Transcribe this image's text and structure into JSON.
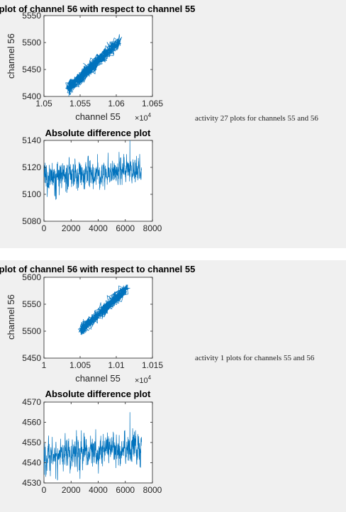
{
  "panels": [
    {
      "caption": "activity 27 plots for channels 55 and 56",
      "scatter": {
        "title": "plot of channel 56 with respect to channel 55",
        "xlabel": "channel 55",
        "ylabel": "channel 56",
        "x_exponent": "×10",
        "x_exponent_power": "4",
        "xlim": [
          1.05,
          1.065
        ],
        "ylim": [
          5400,
          5550
        ],
        "xticks": [
          "1.05",
          "1.055",
          "1.06",
          "1.065"
        ],
        "yticks": [
          "5400",
          "5450",
          "5500",
          "5550"
        ]
      },
      "diff": {
        "title": "Absolute difference plot",
        "xlim": [
          0,
          8000
        ],
        "ylim": [
          5080,
          5140
        ],
        "xticks": [
          "0",
          "2000",
          "4000",
          "6000",
          "8000"
        ],
        "yticks": [
          "5080",
          "5100",
          "5120",
          "5140"
        ]
      }
    },
    {
      "caption": "activity 1 plots for channels 55 and 56",
      "scatter": {
        "title": "plot of channel 56 with respect to channel 55",
        "xlabel": "channel 55",
        "ylabel": "channel 56",
        "x_exponent": "×10",
        "x_exponent_power": "4",
        "xlim": [
          1.0,
          1.015
        ],
        "ylim": [
          5450,
          5600
        ],
        "xticks": [
          "1",
          "1.005",
          "1.01",
          "1.015"
        ],
        "yticks": [
          "5450",
          "5500",
          "5550",
          "5600"
        ]
      },
      "diff": {
        "title": "Absolute difference plot",
        "xlim": [
          0,
          8000
        ],
        "ylim": [
          4530,
          4570
        ],
        "xticks": [
          "0",
          "2000",
          "4000",
          "6000",
          "8000"
        ],
        "yticks": [
          "4530",
          "4540",
          "4550",
          "4560",
          "4570"
        ]
      }
    }
  ],
  "chart_data": [
    {
      "type": "line",
      "title": "plot of channel 56 with respect to channel 55",
      "xlabel": "channel 55",
      "ylabel": "channel 56",
      "x_scale_factor": 10000,
      "xlim": [
        1.05,
        1.065
      ],
      "ylim": [
        5400,
        5550
      ],
      "color": "#0072bd",
      "trend": {
        "x": [
          1.0533,
          1.0605
        ],
        "y": [
          5415,
          5503
        ]
      },
      "spread": 9
    },
    {
      "type": "line",
      "title": "Absolute difference plot",
      "xlim": [
        0,
        8000
      ],
      "ylim": [
        5080,
        5140
      ],
      "color": "#0072bd",
      "series": {
        "x_range": [
          0,
          7200
        ],
        "level_start": 5112,
        "level_end": 5119,
        "amplitude": 7,
        "peak": 5140,
        "trough": 5096
      }
    },
    {
      "type": "line",
      "title": "plot of channel 56 with respect to channel 55",
      "xlabel": "channel 55",
      "ylabel": "channel 56",
      "x_scale_factor": 10000,
      "xlim": [
        1.0,
        1.015
      ],
      "ylim": [
        5450,
        5600
      ],
      "color": "#0072bd",
      "trend": {
        "x": [
          1.0051,
          1.0114
        ],
        "y": [
          5502,
          5578
        ]
      },
      "spread": 8
    },
    {
      "type": "line",
      "title": "Absolute difference plot",
      "xlim": [
        0,
        8000
      ],
      "ylim": [
        4530,
        4570
      ],
      "color": "#0072bd",
      "series": {
        "x_range": [
          0,
          7200
        ],
        "level_start": 4543,
        "level_end": 4548,
        "amplitude": 5,
        "peak": 4565,
        "trough": 4532
      }
    }
  ]
}
